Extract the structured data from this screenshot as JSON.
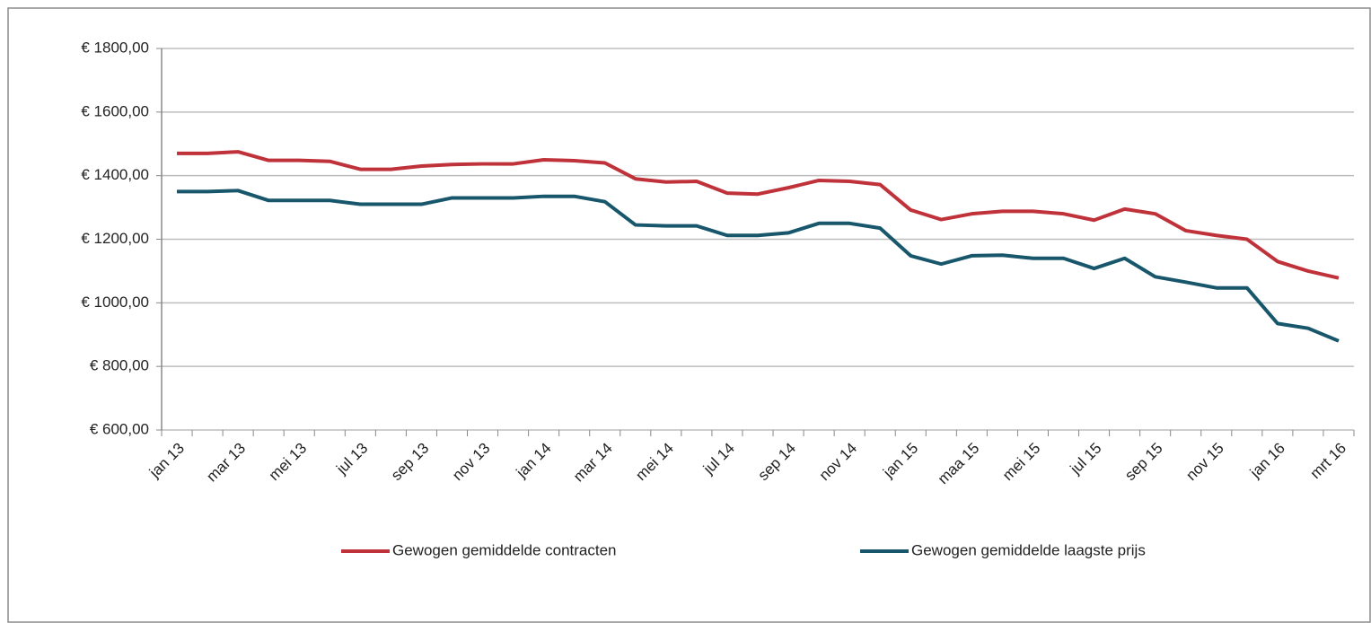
{
  "chart_data": {
    "type": "line",
    "categories": [
      "jan 13",
      null,
      "mar 13",
      null,
      "mei 13",
      null,
      "jul 13",
      null,
      "sep 13",
      null,
      "nov 13",
      null,
      "jan 14",
      null,
      "mar 14",
      null,
      "mei 14",
      null,
      "jul 14",
      null,
      "sep 14",
      null,
      "nov 14",
      null,
      "jan 15",
      null,
      "maa 15",
      null,
      "mei 15",
      null,
      "jul 15",
      null,
      "sep 15",
      null,
      "nov 15",
      null,
      "jan 16",
      null,
      "mrt 16"
    ],
    "series": [
      {
        "name": "Gewogen gemiddelde contracten",
        "color": "#c0323a",
        "values": [
          1470,
          1470,
          1475,
          1448,
          1448,
          1445,
          1420,
          1420,
          1430,
          1435,
          1437,
          1437,
          1450,
          1447,
          1440,
          1390,
          1380,
          1382,
          1345,
          1342,
          1362,
          1385,
          1382,
          1372,
          1292,
          1262,
          1280,
          1288,
          1288,
          1280,
          1260,
          1295,
          1280,
          1227,
          1212,
          1200,
          1130,
          1100,
          1078
        ]
      },
      {
        "name": "Gewogen gemiddelde laagste prijs",
        "color": "#17566b",
        "values": [
          1350,
          1350,
          1353,
          1322,
          1322,
          1322,
          1310,
          1310,
          1310,
          1330,
          1330,
          1330,
          1335,
          1335,
          1318,
          1245,
          1242,
          1242,
          1212,
          1212,
          1220,
          1250,
          1250,
          1235,
          1148,
          1122,
          1148,
          1150,
          1140,
          1140,
          1108,
          1140,
          1082,
          1065,
          1047,
          1047,
          935,
          920,
          880
        ]
      }
    ],
    "ylim": [
      600,
      1800
    ],
    "yticks": [
      {
        "value": 600,
        "label": "€ 600,00"
      },
      {
        "value": 800,
        "label": "€ 800,00"
      },
      {
        "value": 1000,
        "label": "€ 1000,00"
      },
      {
        "value": 1200,
        "label": "€ 1200,00"
      },
      {
        "value": 1400,
        "label": "€ 1400,00"
      },
      {
        "value": 1600,
        "label": "€ 1600,00"
      },
      {
        "value": 1800,
        "label": "€ 1800,00"
      }
    ],
    "grid": true,
    "legend": "bottom"
  }
}
